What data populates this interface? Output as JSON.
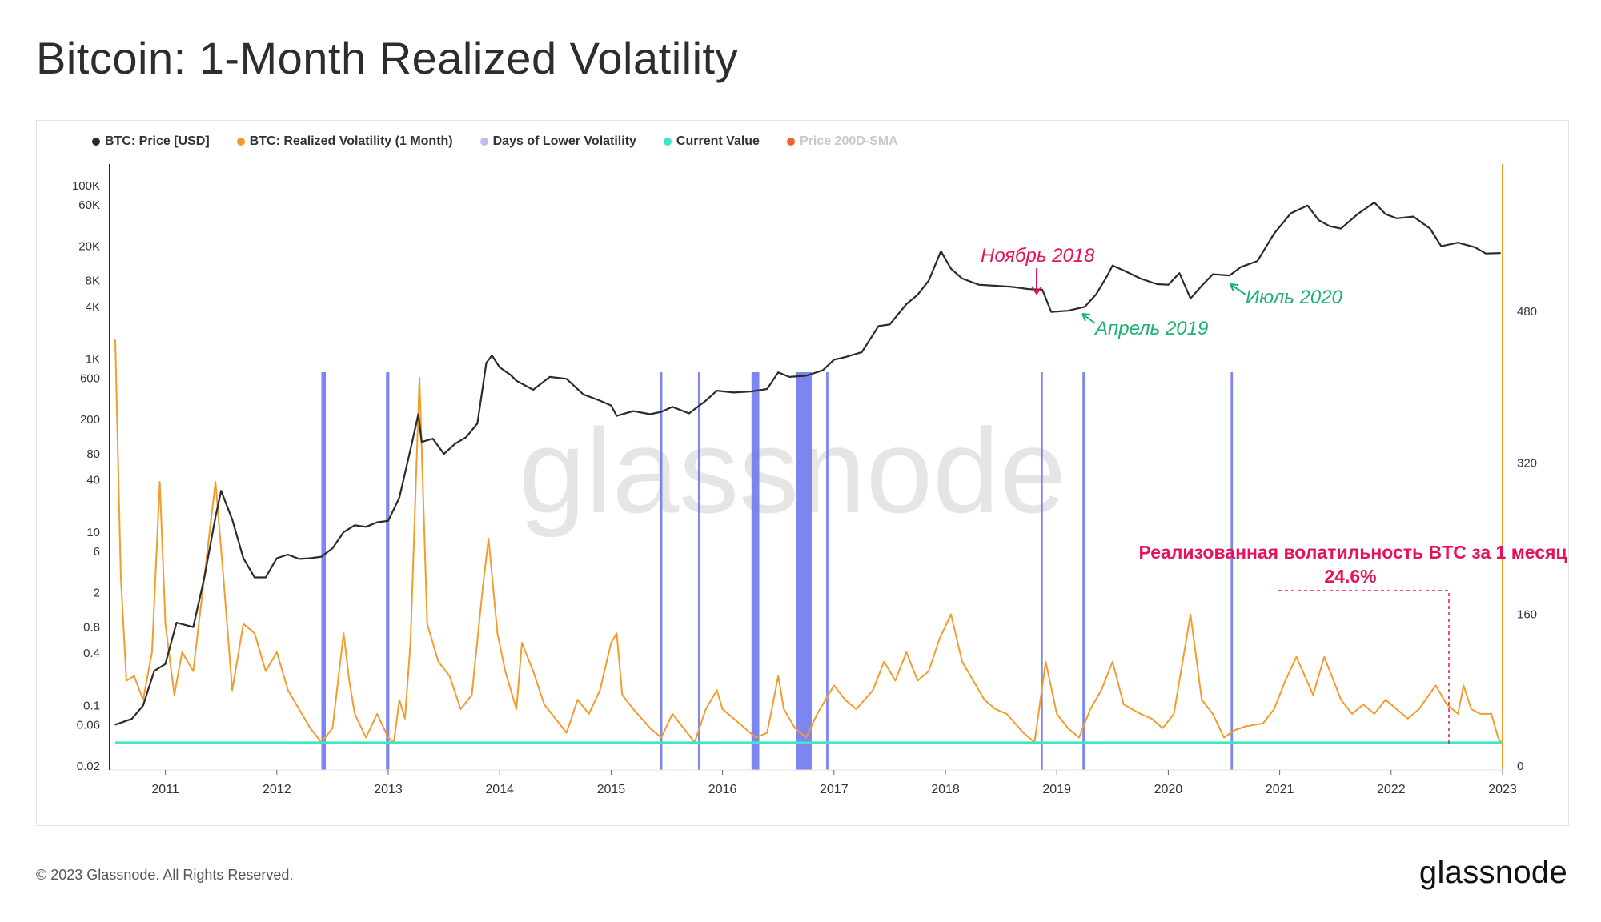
{
  "title": "Bitcoin: 1-Month Realized Volatility",
  "legend": [
    {
      "label": "BTC: Price [USD]",
      "color": "#2b2b2b",
      "faded": false
    },
    {
      "label": "BTC: Realized Volatility (1 Month)",
      "color": "#f39c2d",
      "faded": false
    },
    {
      "label": "Days of Lower Volatility",
      "color": "#b9bff2",
      "faded": false
    },
    {
      "label": "Current Value",
      "color": "#3ee6c1",
      "faded": false
    },
    {
      "label": "Price 200D-SMA",
      "color": "#f2622d",
      "faded": true
    }
  ],
  "watermark": "glassnode",
  "footer": {
    "copyright": "© 2023 Glassnode. All Rights Reserved.",
    "logo": "glassnode"
  },
  "annotations": {
    "nov2018": "Ноябрь 2018",
    "apr2019": "Апрель 2019",
    "jul2020": "Июль 2020",
    "rv_label": "Реализованная волатильность BTC за 1 месяц",
    "rv_value": "24.6%"
  },
  "colors": {
    "price": "#2b2b2b",
    "volatility": "#f39c2d",
    "low_vol": "#6f78ee",
    "current": "#3ee6c1",
    "annotation_red": "#e6135a",
    "annotation_green": "#1bb371",
    "axis_right": "#f39c2d"
  },
  "chart_data": {
    "type": "line",
    "x_ticks": [
      "2011",
      "2012",
      "2013",
      "2014",
      "2015",
      "2016",
      "2017",
      "2018",
      "2019",
      "2020",
      "2021",
      "2022",
      "2023"
    ],
    "left_axis": {
      "scale": "log",
      "tick_labels": [
        "100K",
        "60K",
        "20K",
        "8K",
        "4K",
        "1K",
        "600",
        "200",
        "80",
        "40",
        "10",
        "6",
        "2",
        "0.8",
        "0.4",
        "0.1",
        "0.06",
        "0.02"
      ]
    },
    "right_axis": {
      "scale": "linear",
      "ylim": [
        0,
        480
      ],
      "tick_labels": [
        "0",
        "160",
        "320",
        "480"
      ]
    },
    "current_value": 24.6,
    "series": [
      {
        "name": "BTC: Price [USD]",
        "axis": "left",
        "points": [
          [
            2010.55,
            0.06
          ],
          [
            2010.7,
            0.07
          ],
          [
            2010.8,
            0.1
          ],
          [
            2010.9,
            0.25
          ],
          [
            2011.0,
            0.3
          ],
          [
            2011.1,
            0.9
          ],
          [
            2011.25,
            0.8
          ],
          [
            2011.35,
            3
          ],
          [
            2011.45,
            15
          ],
          [
            2011.5,
            30
          ],
          [
            2011.6,
            14
          ],
          [
            2011.7,
            5
          ],
          [
            2011.8,
            3
          ],
          [
            2011.9,
            3
          ],
          [
            2012.0,
            5
          ],
          [
            2012.1,
            5.5
          ],
          [
            2012.2,
            4.9
          ],
          [
            2012.3,
            5
          ],
          [
            2012.4,
            5.2
          ],
          [
            2012.5,
            6.5
          ],
          [
            2012.6,
            10
          ],
          [
            2012.7,
            12
          ],
          [
            2012.8,
            11.5
          ],
          [
            2012.9,
            13
          ],
          [
            2013.0,
            13.5
          ],
          [
            2013.1,
            25
          ],
          [
            2013.2,
            90
          ],
          [
            2013.27,
            230
          ],
          [
            2013.3,
            110
          ],
          [
            2013.4,
            120
          ],
          [
            2013.5,
            80
          ],
          [
            2013.6,
            105
          ],
          [
            2013.7,
            125
          ],
          [
            2013.8,
            180
          ],
          [
            2013.88,
            900
          ],
          [
            2013.93,
            1100
          ],
          [
            2014.0,
            800
          ],
          [
            2014.1,
            650
          ],
          [
            2014.15,
            560
          ],
          [
            2014.3,
            440
          ],
          [
            2014.45,
            620
          ],
          [
            2014.6,
            590
          ],
          [
            2014.75,
            390
          ],
          [
            2014.9,
            330
          ],
          [
            2015.0,
            290
          ],
          [
            2015.05,
            220
          ],
          [
            2015.2,
            250
          ],
          [
            2015.35,
            230
          ],
          [
            2015.45,
            245
          ],
          [
            2015.55,
            280
          ],
          [
            2015.7,
            235
          ],
          [
            2015.85,
            330
          ],
          [
            2015.95,
            430
          ],
          [
            2016.1,
            410
          ],
          [
            2016.25,
            420
          ],
          [
            2016.4,
            450
          ],
          [
            2016.5,
            700
          ],
          [
            2016.6,
            620
          ],
          [
            2016.75,
            640
          ],
          [
            2016.9,
            740
          ],
          [
            2017.0,
            980
          ],
          [
            2017.1,
            1050
          ],
          [
            2017.25,
            1200
          ],
          [
            2017.4,
            2400
          ],
          [
            2017.5,
            2500
          ],
          [
            2017.65,
            4300
          ],
          [
            2017.75,
            5500
          ],
          [
            2017.85,
            8000
          ],
          [
            2017.96,
            17500
          ],
          [
            2018.05,
            11000
          ],
          [
            2018.15,
            8500
          ],
          [
            2018.3,
            7200
          ],
          [
            2018.45,
            7000
          ],
          [
            2018.6,
            6800
          ],
          [
            2018.75,
            6400
          ],
          [
            2018.87,
            6300
          ],
          [
            2018.95,
            3500
          ],
          [
            2019.1,
            3600
          ],
          [
            2019.25,
            4000
          ],
          [
            2019.35,
            5500
          ],
          [
            2019.45,
            9000
          ],
          [
            2019.5,
            12000
          ],
          [
            2019.6,
            10500
          ],
          [
            2019.75,
            8500
          ],
          [
            2019.9,
            7300
          ],
          [
            2020.0,
            7200
          ],
          [
            2020.1,
            9800
          ],
          [
            2020.2,
            5000
          ],
          [
            2020.3,
            7000
          ],
          [
            2020.4,
            9500
          ],
          [
            2020.55,
            9200
          ],
          [
            2020.65,
            11500
          ],
          [
            2020.8,
            13500
          ],
          [
            2020.95,
            28000
          ],
          [
            2021.1,
            48000
          ],
          [
            2021.25,
            59000
          ],
          [
            2021.35,
            40000
          ],
          [
            2021.45,
            34000
          ],
          [
            2021.55,
            32000
          ],
          [
            2021.7,
            47000
          ],
          [
            2021.85,
            64000
          ],
          [
            2021.95,
            47000
          ],
          [
            2022.05,
            42000
          ],
          [
            2022.2,
            44000
          ],
          [
            2022.35,
            32000
          ],
          [
            2022.45,
            20000
          ],
          [
            2022.6,
            22000
          ],
          [
            2022.75,
            19500
          ],
          [
            2022.85,
            16500
          ],
          [
            2022.98,
            16700
          ]
        ]
      },
      {
        "name": "BTC: Realized Volatility (1 Month)",
        "axis": "right",
        "points": [
          [
            2010.55,
            450
          ],
          [
            2010.6,
            200
          ],
          [
            2010.65,
            90
          ],
          [
            2010.72,
            95
          ],
          [
            2010.8,
            70
          ],
          [
            2010.88,
            120
          ],
          [
            2010.95,
            300
          ],
          [
            2011.0,
            150
          ],
          [
            2011.08,
            75
          ],
          [
            2011.15,
            120
          ],
          [
            2011.25,
            100
          ],
          [
            2011.35,
            200
          ],
          [
            2011.45,
            300
          ],
          [
            2011.52,
            200
          ],
          [
            2011.6,
            80
          ],
          [
            2011.7,
            150
          ],
          [
            2011.8,
            140
          ],
          [
            2011.9,
            100
          ],
          [
            2012.0,
            120
          ],
          [
            2012.1,
            80
          ],
          [
            2012.2,
            60
          ],
          [
            2012.3,
            40
          ],
          [
            2012.4,
            25
          ],
          [
            2012.5,
            40
          ],
          [
            2012.6,
            140
          ],
          [
            2012.65,
            90
          ],
          [
            2012.7,
            55
          ],
          [
            2012.8,
            30
          ],
          [
            2012.9,
            55
          ],
          [
            2013.0,
            30
          ],
          [
            2013.05,
            24.6
          ],
          [
            2013.1,
            70
          ],
          [
            2013.15,
            50
          ],
          [
            2013.2,
            130
          ],
          [
            2013.28,
            410
          ],
          [
            2013.35,
            150
          ],
          [
            2013.45,
            110
          ],
          [
            2013.55,
            95
          ],
          [
            2013.65,
            60
          ],
          [
            2013.75,
            75
          ],
          [
            2013.85,
            190
          ],
          [
            2013.9,
            240
          ],
          [
            2013.98,
            140
          ],
          [
            2014.05,
            100
          ],
          [
            2014.15,
            60
          ],
          [
            2014.2,
            130
          ],
          [
            2014.3,
            100
          ],
          [
            2014.4,
            65
          ],
          [
            2014.5,
            50
          ],
          [
            2014.6,
            35
          ],
          [
            2014.7,
            70
          ],
          [
            2014.8,
            55
          ],
          [
            2014.9,
            80
          ],
          [
            2015.0,
            130
          ],
          [
            2015.05,
            140
          ],
          [
            2015.1,
            75
          ],
          [
            2015.2,
            60
          ],
          [
            2015.35,
            40
          ],
          [
            2015.45,
            30
          ],
          [
            2015.55,
            55
          ],
          [
            2015.65,
            40
          ],
          [
            2015.75,
            25
          ],
          [
            2015.85,
            60
          ],
          [
            2015.95,
            80
          ],
          [
            2016.0,
            60
          ],
          [
            2016.1,
            50
          ],
          [
            2016.2,
            40
          ],
          [
            2016.3,
            30
          ],
          [
            2016.4,
            35
          ],
          [
            2016.5,
            95
          ],
          [
            2016.55,
            60
          ],
          [
            2016.65,
            40
          ],
          [
            2016.75,
            30
          ],
          [
            2016.85,
            55
          ],
          [
            2017.0,
            85
          ],
          [
            2017.1,
            70
          ],
          [
            2017.2,
            60
          ],
          [
            2017.35,
            80
          ],
          [
            2017.45,
            110
          ],
          [
            2017.55,
            90
          ],
          [
            2017.65,
            120
          ],
          [
            2017.75,
            90
          ],
          [
            2017.85,
            100
          ],
          [
            2017.95,
            135
          ],
          [
            2018.05,
            160
          ],
          [
            2018.15,
            110
          ],
          [
            2018.25,
            90
          ],
          [
            2018.35,
            70
          ],
          [
            2018.45,
            60
          ],
          [
            2018.55,
            55
          ],
          [
            2018.7,
            35
          ],
          [
            2018.8,
            25
          ],
          [
            2018.9,
            110
          ],
          [
            2019.0,
            55
          ],
          [
            2019.1,
            40
          ],
          [
            2019.2,
            30
          ],
          [
            2019.3,
            60
          ],
          [
            2019.4,
            80
          ],
          [
            2019.5,
            110
          ],
          [
            2019.6,
            65
          ],
          [
            2019.75,
            55
          ],
          [
            2019.85,
            50
          ],
          [
            2019.95,
            40
          ],
          [
            2020.05,
            55
          ],
          [
            2020.2,
            160
          ],
          [
            2020.3,
            70
          ],
          [
            2020.4,
            55
          ],
          [
            2020.5,
            30
          ],
          [
            2020.6,
            38
          ],
          [
            2020.7,
            42
          ],
          [
            2020.85,
            45
          ],
          [
            2020.95,
            60
          ],
          [
            2021.05,
            90
          ],
          [
            2021.15,
            115
          ],
          [
            2021.3,
            75
          ],
          [
            2021.4,
            115
          ],
          [
            2021.55,
            70
          ],
          [
            2021.65,
            55
          ],
          [
            2021.75,
            65
          ],
          [
            2021.85,
            55
          ],
          [
            2021.95,
            70
          ],
          [
            2022.05,
            60
          ],
          [
            2022.15,
            50
          ],
          [
            2022.25,
            60
          ],
          [
            2022.4,
            85
          ],
          [
            2022.5,
            65
          ],
          [
            2022.6,
            55
          ],
          [
            2022.65,
            85
          ],
          [
            2022.72,
            60
          ],
          [
            2022.8,
            55
          ],
          [
            2022.9,
            55
          ],
          [
            2022.96,
            30
          ],
          [
            2022.99,
            24.6
          ]
        ]
      }
    ],
    "low_volatility_periods": [
      [
        2012.4,
        2012.44
      ],
      [
        2012.98,
        2013.01
      ],
      [
        2015.44,
        2015.46
      ],
      [
        2015.78,
        2015.8
      ],
      [
        2016.26,
        2016.33
      ],
      [
        2016.66,
        2016.8
      ],
      [
        2016.93,
        2016.95
      ],
      [
        2018.86,
        2018.865
      ],
      [
        2019.23,
        2019.25
      ],
      [
        2020.56,
        2020.58
      ]
    ]
  }
}
